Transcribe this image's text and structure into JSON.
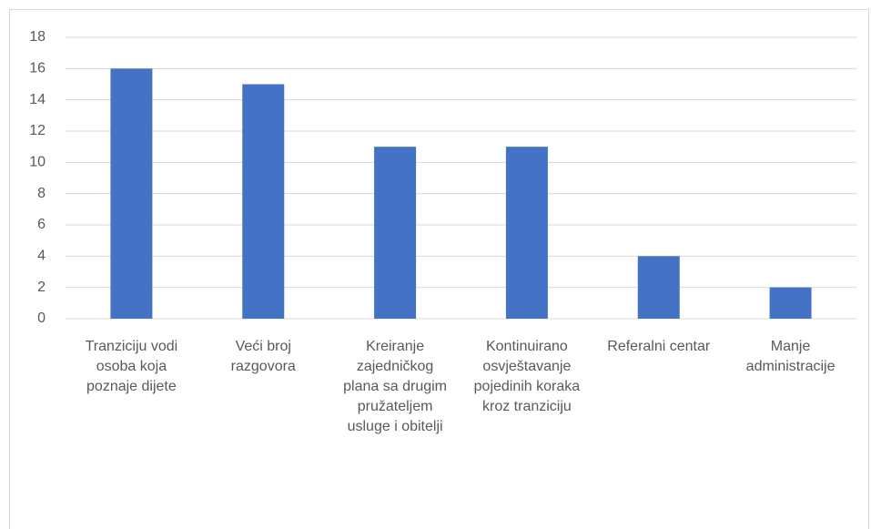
{
  "chart_data": {
    "type": "bar",
    "categories": [
      "Tranziciju vodi osoba koja poznaje dijete",
      "Veći broj razgovora",
      "Kreiranje zajedničkog plana sa drugim pružateljem usluge i obitelji",
      "Kontinuirano osvještavanje pojedinih koraka kroz tranziciju",
      "Referalni centar",
      "Manje administracije"
    ],
    "values": [
      16,
      15,
      11,
      11,
      4,
      2
    ],
    "color": "#4472c4",
    "ylim": [
      0,
      18
    ],
    "yticks": [
      0,
      2,
      4,
      6,
      8,
      10,
      12,
      14,
      16,
      18
    ],
    "grid": true
  }
}
